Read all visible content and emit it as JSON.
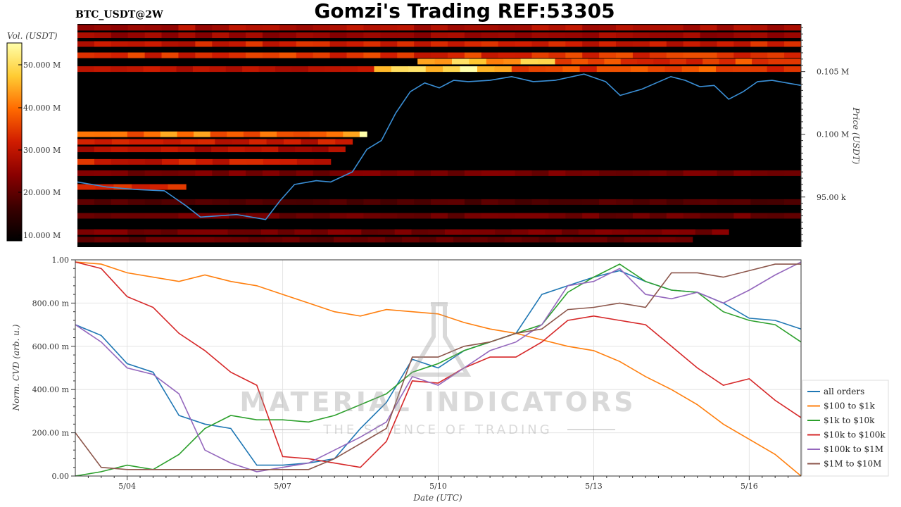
{
  "header": {
    "title": "Gomzi's Trading REF:53305",
    "pair": "BTC_USDT@2W"
  },
  "colorbar": {
    "label": "Vol. (USDT)",
    "ticks": [
      "10.000 M",
      "20.000 M",
      "30.000 M",
      "40.000 M",
      "50.000 M"
    ],
    "stops": [
      "#000000",
      "#3a0000",
      "#8a0000",
      "#d01c00",
      "#ff6a00",
      "#ffcc33",
      "#ffffaa"
    ]
  },
  "watermark": {
    "line1": "MATERIAL INDICATORS",
    "line2": "THE SCIENCE OF TRADING"
  },
  "colors": {
    "all_orders": "#1f77b4",
    "r100_1k": "#ff7f0e",
    "r1k_10k": "#2ca02c",
    "r10k_100k": "#d62728",
    "r100k_1m": "#9467bd",
    "r1m_10m": "#8c564b",
    "price_line": "#3a8fd6"
  },
  "chart_data": [
    {
      "type": "heatmap",
      "title": "",
      "ylabel": "Price (USDT)",
      "y_tick_labels": [
        "95.00 k",
        "0.100 M",
        "0.105 M"
      ],
      "y_ticks": [
        95000,
        100000,
        105000
      ],
      "ylim": [
        91000,
        108800
      ],
      "x_range": [
        "5/03",
        "5/17"
      ],
      "price_series": {
        "name": "BTC price",
        "x": [
          0,
          0.04,
          0.08,
          0.12,
          0.15,
          0.17,
          0.22,
          0.26,
          0.28,
          0.3,
          0.33,
          0.35,
          0.38,
          0.4,
          0.42,
          0.44,
          0.46,
          0.48,
          0.5,
          0.52,
          0.54,
          0.57,
          0.6,
          0.63,
          0.66,
          0.7,
          0.73,
          0.75,
          0.78,
          0.8,
          0.82,
          0.84,
          0.86,
          0.88,
          0.9,
          0.92,
          0.94,
          0.96,
          1.0
        ],
        "y": [
          96200,
          95800,
          95600,
          95500,
          94300,
          93400,
          93600,
          93200,
          94700,
          96000,
          96300,
          96200,
          97000,
          98800,
          99500,
          101700,
          103400,
          104100,
          103700,
          104300,
          104200,
          104300,
          104600,
          104200,
          104300,
          104800,
          104200,
          103100,
          103600,
          104100,
          104600,
          104300,
          103800,
          103900,
          102800,
          103400,
          104200,
          104300,
          103900
        ]
      },
      "liquidity_bands": [
        {
          "price": 108500,
          "x_from": 0.0,
          "x_to": 1.0,
          "intensity": 0.42
        },
        {
          "price": 107900,
          "x_from": 0.0,
          "x_to": 1.0,
          "intensity": 0.38
        },
        {
          "price": 107200,
          "x_from": 0.0,
          "x_to": 1.0,
          "intensity": 0.5
        },
        {
          "price": 106300,
          "x_from": 0.0,
          "x_to": 1.0,
          "intensity": 0.55
        },
        {
          "price": 105800,
          "x_from": 0.47,
          "x_to": 0.66,
          "intensity": 0.82
        },
        {
          "price": 105800,
          "x_from": 0.66,
          "x_to": 1.0,
          "intensity": 0.58
        },
        {
          "price": 105200,
          "x_from": 0.0,
          "x_to": 0.41,
          "intensity": 0.45
        },
        {
          "price": 105200,
          "x_from": 0.41,
          "x_to": 0.6,
          "intensity": 0.92
        },
        {
          "price": 105200,
          "x_from": 0.6,
          "x_to": 1.0,
          "intensity": 0.6
        },
        {
          "price": 100000,
          "x_from": 0.0,
          "x_to": 0.39,
          "intensity": 0.7
        },
        {
          "price": 100000,
          "x_from": 0.39,
          "x_to": 0.4,
          "intensity": 0.95
        },
        {
          "price": 99400,
          "x_from": 0.0,
          "x_to": 0.38,
          "intensity": 0.48
        },
        {
          "price": 98800,
          "x_from": 0.0,
          "x_to": 0.37,
          "intensity": 0.44
        },
        {
          "price": 97800,
          "x_from": 0.0,
          "x_to": 0.35,
          "intensity": 0.5
        },
        {
          "price": 96900,
          "x_from": 0.0,
          "x_to": 1.0,
          "intensity": 0.3
        },
        {
          "price": 95800,
          "x_from": 0.0,
          "x_to": 0.15,
          "intensity": 0.55
        },
        {
          "price": 94600,
          "x_from": 0.0,
          "x_to": 1.0,
          "intensity": 0.22
        },
        {
          "price": 93500,
          "x_from": 0.0,
          "x_to": 1.0,
          "intensity": 0.28
        },
        {
          "price": 92200,
          "x_from": 0.0,
          "x_to": 0.9,
          "intensity": 0.3
        },
        {
          "price": 91600,
          "x_from": 0.0,
          "x_to": 0.85,
          "intensity": 0.26
        }
      ]
    },
    {
      "type": "line",
      "title": "",
      "xlabel": "Date (UTC)",
      "ylabel": "Norm. CVD (arb. u.)",
      "x_tick_labels": [
        "5/04",
        "5/07",
        "5/10",
        "5/13",
        "5/16"
      ],
      "x_ticks": [
        1,
        4,
        7,
        10,
        13
      ],
      "xlim": [
        0,
        14
      ],
      "ylim": [
        0,
        1
      ],
      "y_ticks": [
        0,
        0.2,
        0.4,
        0.6,
        0.8,
        1.0
      ],
      "y_tick_labels": [
        "0.00",
        "200.00 m",
        "400.00 m",
        "600.00 m",
        "800.00 m",
        "1.00"
      ],
      "grid": true,
      "legend_position": "right",
      "x": [
        0,
        0.5,
        1,
        1.5,
        2,
        2.5,
        3,
        3.5,
        4,
        4.5,
        5,
        5.5,
        6,
        6.5,
        7,
        7.5,
        8,
        8.5,
        9,
        9.5,
        10,
        10.5,
        11,
        11.5,
        12,
        12.5,
        13,
        13.5,
        14
      ],
      "series": [
        {
          "name": "all orders",
          "color_key": "all_orders",
          "values": [
            0.7,
            0.65,
            0.52,
            0.48,
            0.28,
            0.24,
            0.22,
            0.05,
            0.05,
            0.06,
            0.08,
            0.22,
            0.34,
            0.54,
            0.5,
            0.58,
            0.62,
            0.66,
            0.84,
            0.88,
            0.92,
            0.95,
            0.9,
            0.86,
            0.85,
            0.8,
            0.73,
            0.72,
            0.68
          ]
        },
        {
          "name": "$100 to $1k",
          "color_key": "r100_1k",
          "values": [
            0.99,
            0.98,
            0.94,
            0.92,
            0.9,
            0.93,
            0.9,
            0.88,
            0.84,
            0.8,
            0.76,
            0.74,
            0.77,
            0.76,
            0.75,
            0.71,
            0.68,
            0.66,
            0.63,
            0.6,
            0.58,
            0.53,
            0.46,
            0.4,
            0.33,
            0.24,
            0.17,
            0.1,
            0.0
          ]
        },
        {
          "name": "$1k to $10k",
          "color_key": "r1k_10k",
          "values": [
            0.0,
            0.02,
            0.05,
            0.03,
            0.1,
            0.22,
            0.28,
            0.26,
            0.26,
            0.25,
            0.28,
            0.33,
            0.38,
            0.48,
            0.52,
            0.58,
            0.62,
            0.66,
            0.7,
            0.85,
            0.92,
            0.98,
            0.9,
            0.86,
            0.85,
            0.76,
            0.72,
            0.7,
            0.62
          ]
        },
        {
          "name": "$10k to $100k",
          "color_key": "r10k_100k",
          "values": [
            0.99,
            0.96,
            0.83,
            0.78,
            0.66,
            0.58,
            0.48,
            0.42,
            0.09,
            0.08,
            0.06,
            0.04,
            0.16,
            0.44,
            0.43,
            0.5,
            0.55,
            0.55,
            0.62,
            0.72,
            0.74,
            0.72,
            0.7,
            0.6,
            0.5,
            0.42,
            0.45,
            0.35,
            0.27
          ]
        },
        {
          "name": "$100k to $1M",
          "color_key": "r100k_1m",
          "values": [
            0.7,
            0.62,
            0.5,
            0.47,
            0.38,
            0.12,
            0.06,
            0.02,
            0.04,
            0.06,
            0.12,
            0.18,
            0.25,
            0.46,
            0.42,
            0.5,
            0.58,
            0.62,
            0.7,
            0.88,
            0.9,
            0.96,
            0.84,
            0.82,
            0.85,
            0.8,
            0.86,
            0.93,
            0.99
          ]
        },
        {
          "name": "$1M to $10M",
          "color_key": "r1m_10m",
          "values": [
            0.2,
            0.04,
            0.03,
            0.03,
            0.03,
            0.03,
            0.03,
            0.03,
            0.03,
            0.03,
            0.08,
            0.15,
            0.22,
            0.55,
            0.55,
            0.6,
            0.62,
            0.66,
            0.68,
            0.77,
            0.78,
            0.8,
            0.78,
            0.94,
            0.94,
            0.92,
            0.95,
            0.98,
            0.98
          ]
        }
      ]
    }
  ]
}
